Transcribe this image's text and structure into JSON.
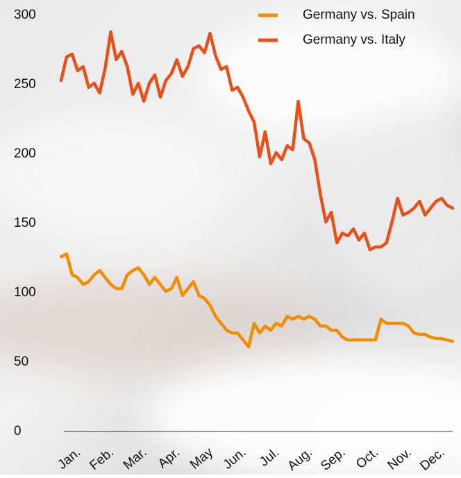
{
  "chart_data": {
    "type": "line",
    "categories": [
      null,
      null,
      "Jan.",
      null,
      null,
      null,
      null,
      null,
      "Feb.",
      null,
      null,
      null,
      null,
      null,
      "Mar.",
      null,
      null,
      null,
      null,
      null,
      "Apr.",
      null,
      null,
      null,
      null,
      null,
      "May",
      null,
      null,
      null,
      null,
      null,
      "Jun.",
      null,
      null,
      null,
      null,
      null,
      "Jul.",
      null,
      null,
      null,
      null,
      null,
      "Aug.",
      null,
      null,
      null,
      null,
      null,
      "Sep.",
      null,
      null,
      null,
      null,
      null,
      "Oct.",
      null,
      null,
      null,
      null,
      null,
      "Nov.",
      null,
      null,
      null,
      null,
      null,
      "Dec.",
      null,
      null,
      null
    ],
    "series": [
      {
        "name": "Germany vs. Spain",
        "color": "#f28c00",
        "values": [
          126,
          128,
          113,
          111,
          106,
          108,
          113,
          116,
          111,
          106,
          103,
          103,
          113,
          116,
          118,
          113,
          106,
          111,
          106,
          101,
          103,
          111,
          98,
          103,
          108,
          98,
          96,
          91,
          83,
          78,
          73,
          71,
          71,
          66,
          61,
          78,
          71,
          76,
          73,
          78,
          76,
          83,
          81,
          83,
          81,
          83,
          81,
          76,
          76,
          73,
          73,
          68,
          66,
          66,
          66,
          66,
          66,
          66,
          81,
          78,
          78,
          78,
          78,
          76,
          71,
          70,
          70,
          68,
          67,
          67,
          66,
          65
        ]
      },
      {
        "name": "Germany vs. Italy",
        "color": "#e8501a",
        "values": [
          253,
          270,
          272,
          260,
          263,
          248,
          251,
          244,
          262,
          288,
          268,
          274,
          263,
          243,
          251,
          238,
          251,
          257,
          241,
          253,
          258,
          268,
          256,
          263,
          276,
          278,
          273,
          287,
          271,
          261,
          263,
          246,
          248,
          241,
          231,
          223,
          198,
          216,
          193,
          201,
          196,
          206,
          203,
          238,
          211,
          208,
          196,
          171,
          151,
          158,
          136,
          143,
          141,
          146,
          138,
          143,
          131,
          133,
          133,
          136,
          151,
          168,
          156,
          158,
          161,
          166,
          156,
          161,
          166,
          168,
          163,
          161
        ]
      }
    ],
    "ylim": [
      0,
      300
    ],
    "yticks": [
      0,
      50,
      100,
      150,
      200,
      250,
      300
    ],
    "legend": "top-right"
  }
}
